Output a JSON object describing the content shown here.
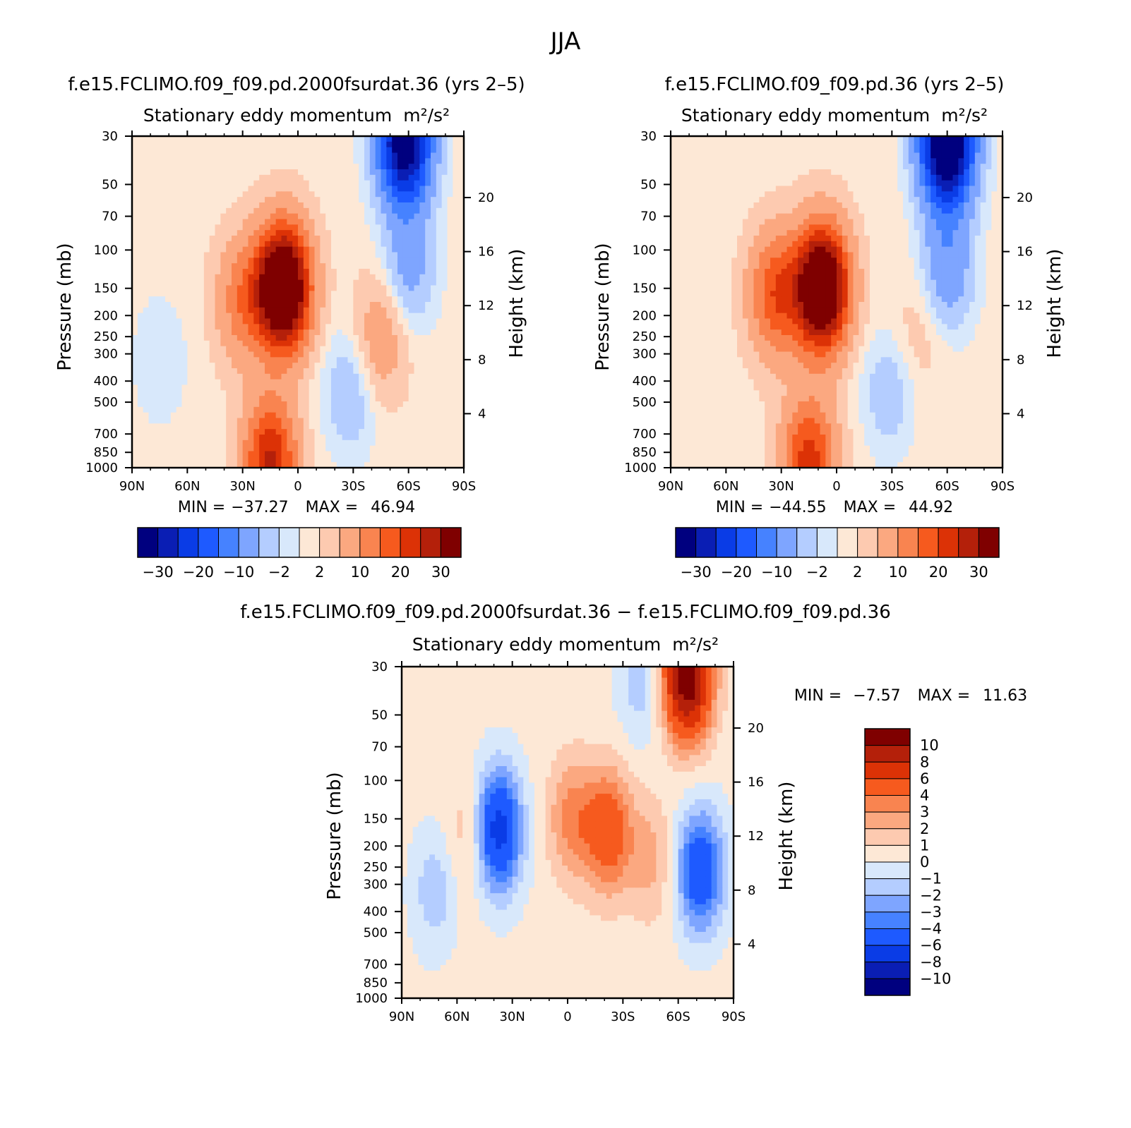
{
  "figure_title": "JJA",
  "colors": {
    "main_scale": [
      "#00007f",
      "#0a1eb4",
      "#0a3ce6",
      "#1e5aff",
      "#4682ff",
      "#7ea5ff",
      "#b4cdff",
      "#d8e8fb",
      "#fde8d6",
      "#fdcab0",
      "#fba880",
      "#f98450",
      "#f65a1e",
      "#dc3206",
      "#b4200a",
      "#7f0000"
    ],
    "diff_scale": [
      "#00007f",
      "#0a1eb4",
      "#0a3ce6",
      "#1e5aff",
      "#4682ff",
      "#7ea5ff",
      "#b4cdff",
      "#d8e8fb",
      "#fde8d6",
      "#fdcab0",
      "#fba880",
      "#f98450",
      "#f65a1e",
      "#dc3206",
      "#b4200a",
      "#7f0000"
    ]
  },
  "chart_data": [
    {
      "type": "heatmap",
      "title": "f.e15.FCLIMO.f09_f09.pd.2000fsurdat.36 (yrs 2–5)",
      "subtitle": "Stationary eddy momentum",
      "units": "m²/s²",
      "ylabel": "Pressure (mb)",
      "ylabel_right": "Height (km)",
      "x_ticks": [
        "90N",
        "60N",
        "30N",
        "0",
        "30S",
        "60S",
        "90S"
      ],
      "y_ticks": [
        "30",
        "50",
        "70",
        "100",
        "150",
        "200",
        "250",
        "300",
        "400",
        "500",
        "700",
        "850",
        "1000"
      ],
      "y_ticks_right": [
        "20",
        "16",
        "12",
        "8",
        "4"
      ],
      "ylim": [
        1000,
        30
      ],
      "xlim": [
        "90N",
        "90S"
      ],
      "log_y": true,
      "min_label": "MIN =",
      "min_value": "−37.27",
      "max_label": "MAX =",
      "max_value": "46.94",
      "colorbar_labels": [
        "−30",
        "−20",
        "−10",
        "−2",
        "2",
        "10",
        "20",
        "30"
      ],
      "features": [
        {
          "lat": 8,
          "p": 150,
          "value": 46.94
        },
        {
          "lat": 30,
          "p": 170,
          "value": 12
        },
        {
          "lat": -45,
          "p": 250,
          "value": 8
        },
        {
          "lat": 15,
          "p": 940,
          "value": 25
        },
        {
          "lat": -58,
          "p": 32,
          "value": -37.27
        },
        {
          "lat": -60,
          "p": 120,
          "value": -8
        },
        {
          "lat": -28,
          "p": 450,
          "value": -6
        },
        {
          "lat": 75,
          "p": 320,
          "value": -3
        }
      ]
    },
    {
      "type": "heatmap",
      "title": "f.e15.FCLIMO.f09_f09.pd.36 (yrs 2–5)",
      "subtitle": "Stationary eddy momentum",
      "units": "m²/s²",
      "ylabel": "Pressure (mb)",
      "ylabel_right": "Height (km)",
      "x_ticks": [
        "90N",
        "60N",
        "30N",
        "0",
        "30S",
        "60S",
        "90S"
      ],
      "y_ticks": [
        "30",
        "50",
        "70",
        "100",
        "150",
        "200",
        "250",
        "300",
        "400",
        "500",
        "700",
        "850",
        "1000"
      ],
      "y_ticks_right": [
        "20",
        "16",
        "12",
        "8",
        "4"
      ],
      "ylim": [
        1000,
        30
      ],
      "xlim": [
        "90N",
        "90S"
      ],
      "log_y": true,
      "min_label": "MIN =",
      "min_value": "−44.55",
      "max_label": "MAX =",
      "max_value": "44.92",
      "colorbar_labels": [
        "−30",
        "−20",
        "−10",
        "−2",
        "2",
        "10",
        "20",
        "30"
      ],
      "features": [
        {
          "lat": 8,
          "p": 150,
          "value": 44.92
        },
        {
          "lat": 33,
          "p": 160,
          "value": 18
        },
        {
          "lat": -45,
          "p": 230,
          "value": 3
        },
        {
          "lat": 15,
          "p": 940,
          "value": 22
        },
        {
          "lat": -60,
          "p": 32,
          "value": -44.55
        },
        {
          "lat": -60,
          "p": 120,
          "value": -10
        },
        {
          "lat": -28,
          "p": 450,
          "value": -5
        }
      ]
    },
    {
      "type": "heatmap",
      "title": "f.e15.FCLIMO.f09_f09.pd.2000fsurdat.36 − f.e15.FCLIMO.f09_f09.pd.36",
      "subtitle": "Stationary eddy momentum",
      "units": "m²/s²",
      "ylabel": "Pressure (mb)",
      "ylabel_right": "Height (km)",
      "x_ticks": [
        "90N",
        "60N",
        "30N",
        "0",
        "30S",
        "60S",
        "90S"
      ],
      "y_ticks": [
        "30",
        "50",
        "70",
        "100",
        "150",
        "200",
        "250",
        "300",
        "400",
        "500",
        "700",
        "850",
        "1000"
      ],
      "y_ticks_right": [
        "20",
        "16",
        "12",
        "8",
        "4"
      ],
      "ylim": [
        1000,
        30
      ],
      "xlim": [
        "90N",
        "90S"
      ],
      "log_y": true,
      "min_label": "MIN =",
      "min_value": "−7.57",
      "max_label": "MAX =",
      "max_value": "11.63",
      "colorbar_labels": [
        "10",
        "8",
        "6",
        "4",
        "3",
        "2",
        "1",
        "0",
        "−1",
        "−2",
        "−3",
        "−4",
        "−6",
        "−8",
        "−10"
      ],
      "features": [
        {
          "lat": -65,
          "p": 33,
          "value": 11.63
        },
        {
          "lat": -22,
          "p": 170,
          "value": 5
        },
        {
          "lat": -2,
          "p": 150,
          "value": 3
        },
        {
          "lat": -45,
          "p": 230,
          "value": 2
        },
        {
          "lat": 52,
          "p": 180,
          "value": 2
        },
        {
          "lat": 38,
          "p": 170,
          "value": -7.57
        },
        {
          "lat": -72,
          "p": 260,
          "value": -6
        },
        {
          "lat": 72,
          "p": 320,
          "value": -2
        },
        {
          "lat": -40,
          "p": 35,
          "value": -2
        }
      ]
    }
  ]
}
